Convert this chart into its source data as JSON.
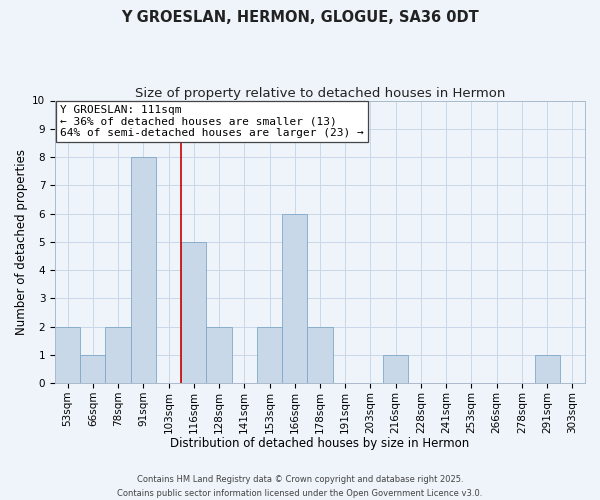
{
  "title": "Y GROESLAN, HERMON, GLOGUE, SA36 0DT",
  "subtitle": "Size of property relative to detached houses in Hermon",
  "xlabel": "Distribution of detached houses by size in Hermon",
  "ylabel": "Number of detached properties",
  "bar_labels": [
    "53sqm",
    "66sqm",
    "78sqm",
    "91sqm",
    "103sqm",
    "116sqm",
    "128sqm",
    "141sqm",
    "153sqm",
    "166sqm",
    "178sqm",
    "191sqm",
    "203sqm",
    "216sqm",
    "228sqm",
    "241sqm",
    "253sqm",
    "266sqm",
    "278sqm",
    "291sqm",
    "303sqm"
  ],
  "bar_values": [
    2,
    1,
    2,
    8,
    0,
    5,
    2,
    0,
    2,
    6,
    2,
    0,
    0,
    1,
    0,
    0,
    0,
    0,
    0,
    1,
    0
  ],
  "bar_color": "#c8d8e8",
  "bar_edge_color": "#7fa8c8",
  "vline_x": 4.5,
  "vline_color": "#cc0000",
  "annotation_text": "Y GROESLAN: 111sqm\n← 36% of detached houses are smaller (13)\n64% of semi-detached houses are larger (23) →",
  "annotation_box_color": "#ffffff",
  "annotation_box_edge": "#444444",
  "ylim": [
    0,
    10
  ],
  "yticks": [
    0,
    1,
    2,
    3,
    4,
    5,
    6,
    7,
    8,
    9,
    10
  ],
  "grid_color": "#c8d8e8",
  "bg_color": "#eef4fa",
  "footer": "Contains HM Land Registry data © Crown copyright and database right 2025.\nContains public sector information licensed under the Open Government Licence v3.0.",
  "title_fontsize": 10.5,
  "subtitle_fontsize": 9.5,
  "xlabel_fontsize": 8.5,
  "ylabel_fontsize": 8.5,
  "tick_fontsize": 7.5,
  "annotation_fontsize": 8,
  "footer_fontsize": 6
}
